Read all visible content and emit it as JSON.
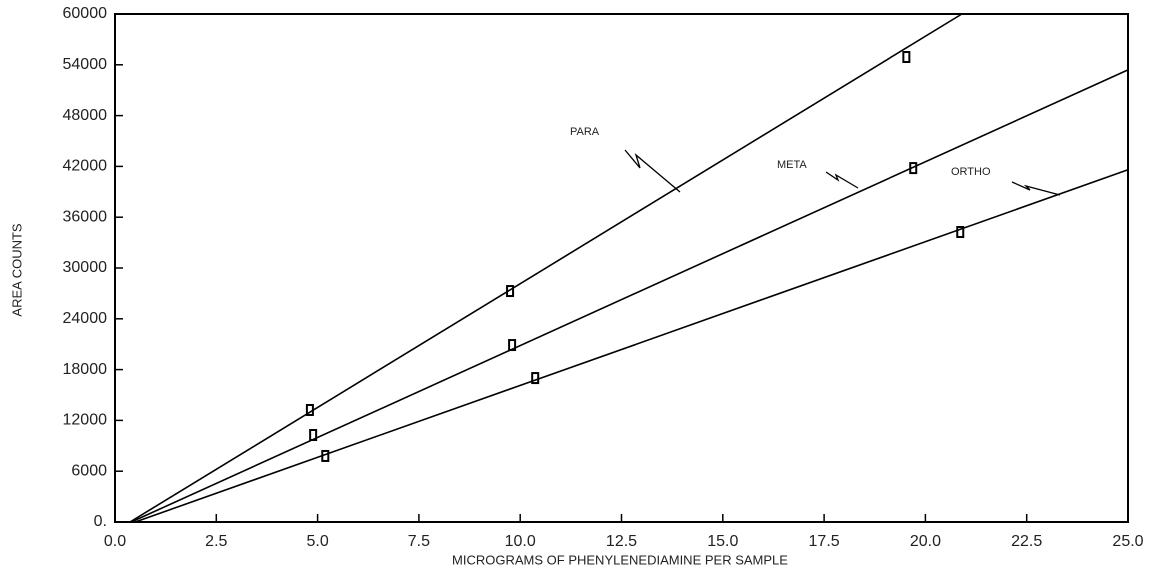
{
  "chart_data": {
    "type": "line",
    "xlabel": "MICROGRAMS OF PHENYLENEDIAMINE PER SAMPLE",
    "ylabel": "AREA COUNTS",
    "xlim": [
      0,
      25
    ],
    "ylim": [
      0,
      60000
    ],
    "xticks": [
      {
        "value": 0,
        "label": "0.0"
      },
      2.5,
      {
        "value": 5,
        "label": "5.0"
      },
      7.5,
      {
        "value": 10,
        "label": "10.0"
      },
      12.5,
      {
        "value": 15,
        "label": "15.0"
      },
      17.5,
      {
        "value": 20,
        "label": "20.0"
      },
      22.5,
      {
        "value": 25,
        "label": "25.0"
      }
    ],
    "yticks": [
      {
        "value": 0,
        "label": "0."
      },
      6000,
      12000,
      18000,
      24000,
      30000,
      36000,
      42000,
      48000,
      54000,
      60000
    ],
    "grid": false,
    "series": [
      {
        "name": "PARA",
        "color": "#000000",
        "x": [
          4.81,
          9.75,
          19.53
        ],
        "values": [
          13230,
          27280,
          54920
        ],
        "fit_x": [
          0.37,
          20.9
        ],
        "fit_values": [
          0,
          60000
        ]
      },
      {
        "name": "META",
        "color": "#000000",
        "x": [
          4.89,
          9.8,
          19.7
        ],
        "values": [
          10275,
          20900,
          41800
        ],
        "fit_x": [
          0.4,
          25
        ],
        "fit_values": [
          0,
          53400
        ]
      },
      {
        "name": "ORTHO",
        "color": "#000000",
        "x": [
          5.19,
          10.37,
          20.86
        ],
        "values": [
          7800,
          17000,
          34250
        ],
        "fit_x": [
          0.5,
          25
        ],
        "fit_values": [
          0,
          41600
        ]
      }
    ]
  }
}
